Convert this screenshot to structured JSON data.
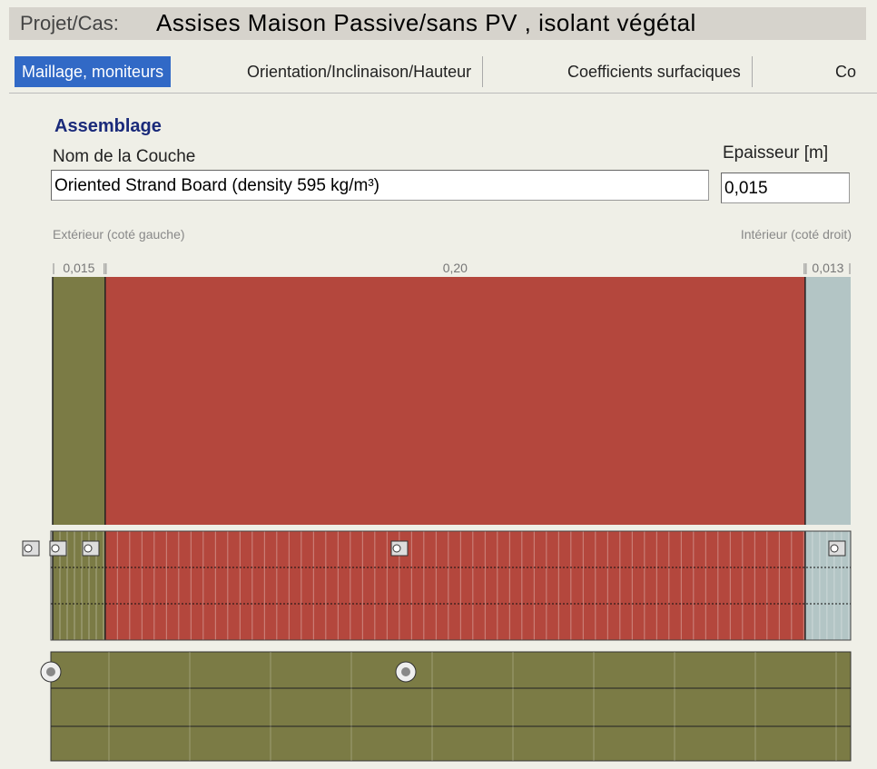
{
  "header": {
    "label": "Projet/Cas:",
    "title": "Assises Maison Passive/sans PV ,  isolant végétal"
  },
  "tabs": [
    "Maillage, moniteurs",
    "Orientation/Inclinaison/Hauteur",
    "Coefficients surfaciques",
    "Co"
  ],
  "section": {
    "title": "Assemblage",
    "name_label": "Nom de la Couche",
    "thickness_label": "Epaisseur [m]",
    "name_value": "Oriented Strand Board (density 595 kg/m³)",
    "thickness_value": "0,015"
  },
  "assembly": {
    "exterior_label": "Extérieur (coté gauche)",
    "interior_label": "Intérieur (coté droit)",
    "layers": [
      {
        "thickness": 0.015,
        "label": "0,015",
        "color": "#7b7b45"
      },
      {
        "thickness": 0.2,
        "label": "0,20",
        "color": "#b4473d"
      },
      {
        "thickness": 0.013,
        "label": "0,013",
        "color": "#b3c5c5"
      }
    ]
  }
}
